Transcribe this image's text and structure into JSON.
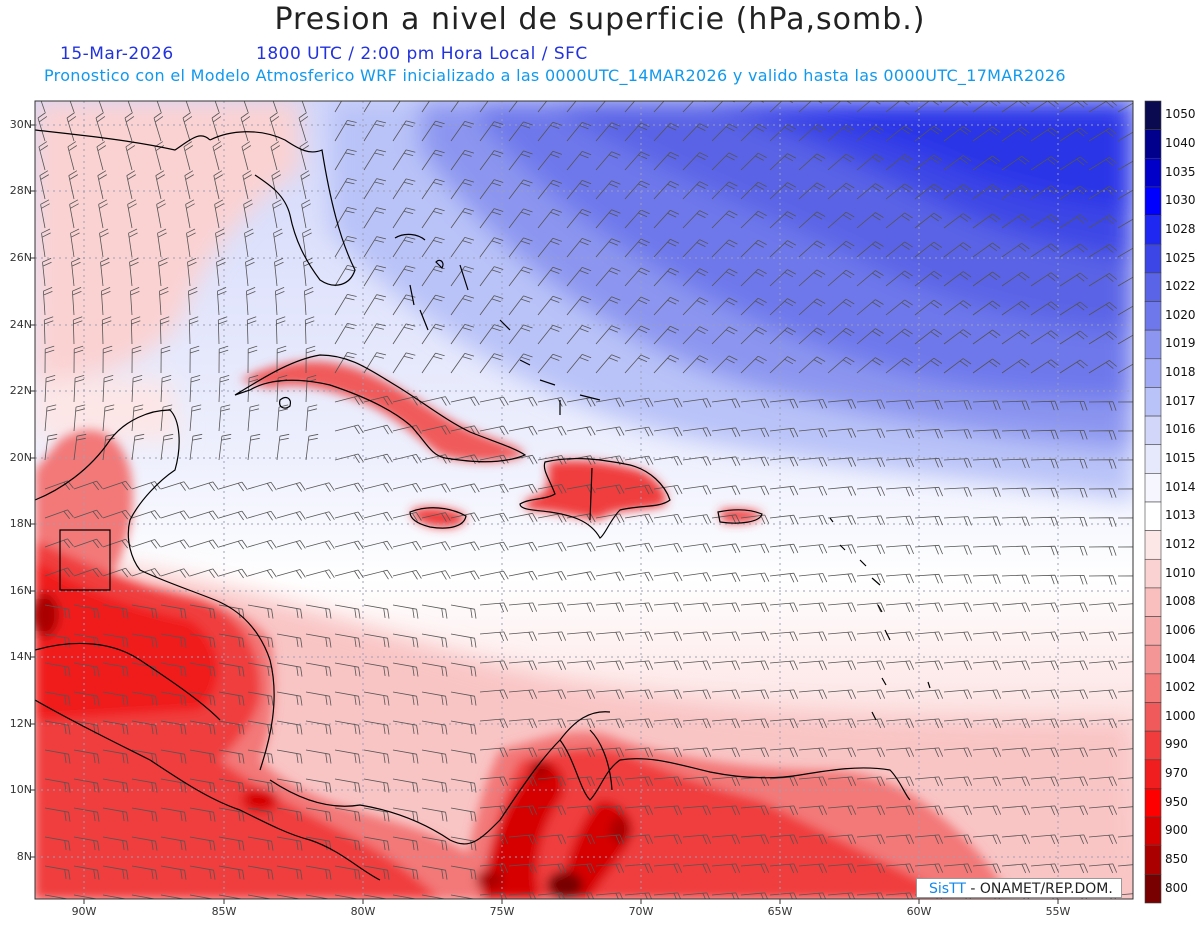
{
  "header": {
    "title": "Presion a nivel de superficie (hPa,somb.)",
    "date": "15-Mar-2026",
    "time": "1800 UTC / 2:00 pm Hora Local / SFC",
    "model_line": "Pronostico con el Modelo Atmosferico WRF inicializado a las 0000UTC_14MAR2026 y valido hasta las  0000UTC_17MAR2026"
  },
  "axes": {
    "lat_labels": [
      "30N",
      "28N",
      "26N",
      "24N",
      "22N",
      "20N",
      "18N",
      "16N",
      "14N",
      "12N",
      "10N",
      "8N"
    ],
    "lon_labels": [
      "90W",
      "85W",
      "80W",
      "75W",
      "70W",
      "65W",
      "60W",
      "55W"
    ]
  },
  "colorbar": {
    "levels": [
      "1050",
      "1040",
      "1035",
      "1030",
      "1028",
      "1025",
      "1022",
      "1020",
      "1019",
      "1018",
      "1017",
      "1016",
      "1015",
      "1014",
      "1013",
      "1012",
      "1010",
      "1008",
      "1006",
      "1004",
      "1002",
      "1000",
      "990",
      "970",
      "950",
      "900",
      "850",
      "800"
    ],
    "colors": [
      "#0a0a50",
      "#00008c",
      "#0000c8",
      "#0000ff",
      "#1e28f0",
      "#3c46e6",
      "#5a64e6",
      "#6e78eb",
      "#8c96f0",
      "#a0aaf5",
      "#b9c3f8",
      "#d2d7fa",
      "#e6e9fc",
      "#f5f6fe",
      "#ffffff",
      "#fde6e6",
      "#fbd2d2",
      "#f9bebe",
      "#f7aaaa",
      "#f59696",
      "#f37878",
      "#f05a5a",
      "#f03c3c",
      "#f01e1e",
      "#ff0000",
      "#d70000",
      "#aa0000",
      "#780000"
    ]
  },
  "signature": {
    "brand": "SisTT",
    "text": " - ONAMET/REP.DOM."
  }
}
